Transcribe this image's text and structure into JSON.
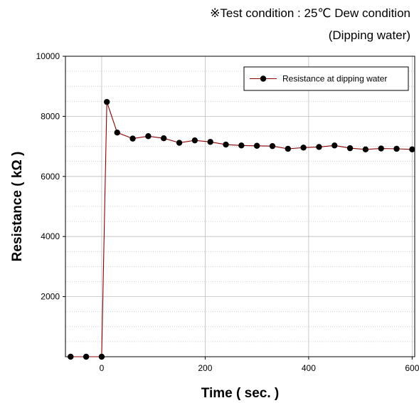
{
  "header": {
    "condition_line": "※Test condition : 25℃ Dew condition",
    "condition_sub": "(Dipping water)"
  },
  "chart_data": {
    "type": "line",
    "xlabel": "Time ( sec. )",
    "ylabel": "Resistance ( kΩ )",
    "xlim": [
      -70,
      605
    ],
    "ylim": [
      0,
      10000
    ],
    "x_ticks": [
      0,
      200,
      400,
      600
    ],
    "y_ticks": [
      2000,
      4000,
      6000,
      8000,
      10000
    ],
    "grid": true,
    "legend_position": "top-right",
    "series": [
      {
        "name": "Resistance at dipping water",
        "color": "#8b0000",
        "marker_color": "#000000",
        "x": [
          -60,
          -30,
          0,
          10,
          30,
          60,
          90,
          120,
          150,
          180,
          210,
          240,
          270,
          300,
          330,
          360,
          390,
          420,
          450,
          480,
          510,
          540,
          570,
          600
        ],
        "y": [
          0,
          0,
          0,
          8480,
          7460,
          7260,
          7340,
          7270,
          7120,
          7200,
          7150,
          7060,
          7030,
          7020,
          7010,
          6920,
          6960,
          6980,
          7030,
          6940,
          6900,
          6930,
          6920,
          6900
        ]
      }
    ]
  }
}
